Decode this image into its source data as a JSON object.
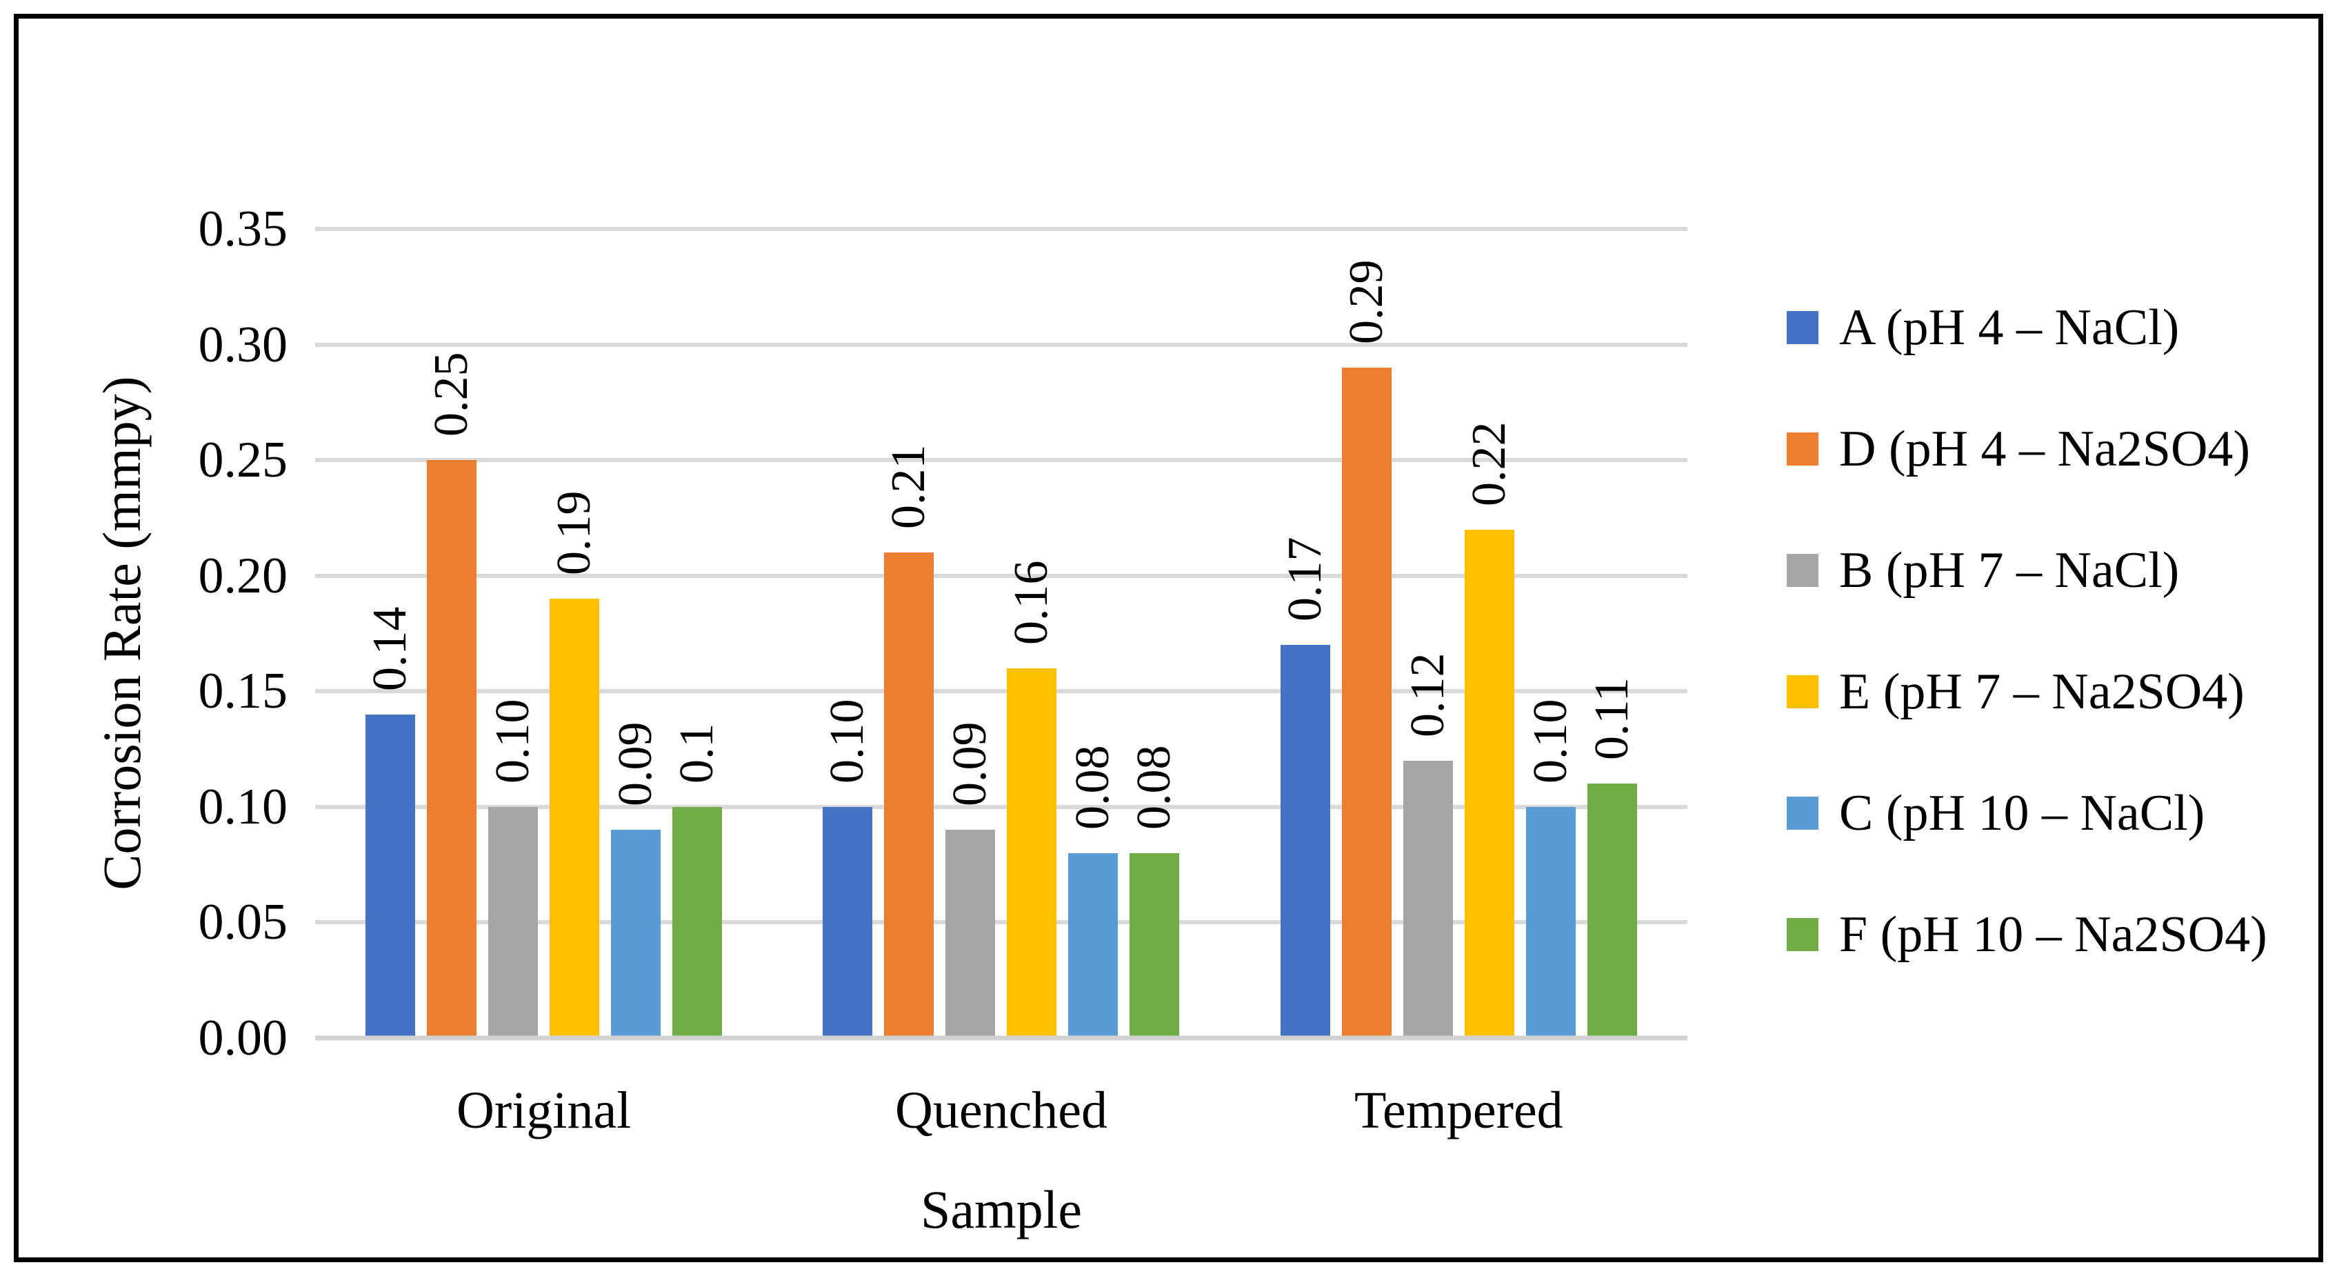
{
  "chart_data": {
    "type": "bar",
    "title": "",
    "xlabel": "Sample",
    "ylabel": "Corrosion Rate (mmpy)",
    "categories": [
      "Original",
      "Quenched",
      "Tempered"
    ],
    "series": [
      {
        "name": "A (pH 4 – NaCl)",
        "color": "#4472C4",
        "values": [
          0.14,
          0.1,
          0.17
        ],
        "labels": [
          "0.14",
          "0.10",
          "0.17"
        ]
      },
      {
        "name": "D (pH 4 – Na2SO4)",
        "color": "#ED7D31",
        "values": [
          0.25,
          0.21,
          0.29
        ],
        "labels": [
          "0.25",
          "0.21",
          "0.29"
        ]
      },
      {
        "name": "B (pH 7 – NaCl)",
        "color": "#A5A5A5",
        "values": [
          0.1,
          0.09,
          0.12
        ],
        "labels": [
          "0.10",
          "0.09",
          "0.12"
        ]
      },
      {
        "name": "E (pH 7 – Na2SO4)",
        "color": "#FFC000",
        "values": [
          0.19,
          0.16,
          0.22
        ],
        "labels": [
          "0.19",
          "0.16",
          "0.22"
        ]
      },
      {
        "name": "C (pH 10 – NaCl)",
        "color": "#5B9BD5",
        "values": [
          0.09,
          0.08,
          0.1
        ],
        "labels": [
          "0.09",
          "0.08",
          "0.10"
        ]
      },
      {
        "name": "F (pH 10 – Na2SO4)",
        "color": "#70AD47",
        "values": [
          0.1,
          0.08,
          0.11
        ],
        "labels": [
          "0.1",
          "0.08",
          "0.11"
        ]
      }
    ],
    "y_ticks": [
      "0.35",
      "0.30",
      "0.25",
      "0.20",
      "0.15",
      "0.10",
      "0.05",
      "0.00"
    ],
    "ylim": [
      0,
      0.35
    ],
    "grid": true,
    "legend_position": "right",
    "data_label_rotation": "vertical-up",
    "colors": {
      "gridline": "#D9D9D9",
      "axis_baseline": "#D2D2D2",
      "text": "#000000",
      "frame_border": "#000000",
      "background": "#FFFFFF"
    }
  }
}
